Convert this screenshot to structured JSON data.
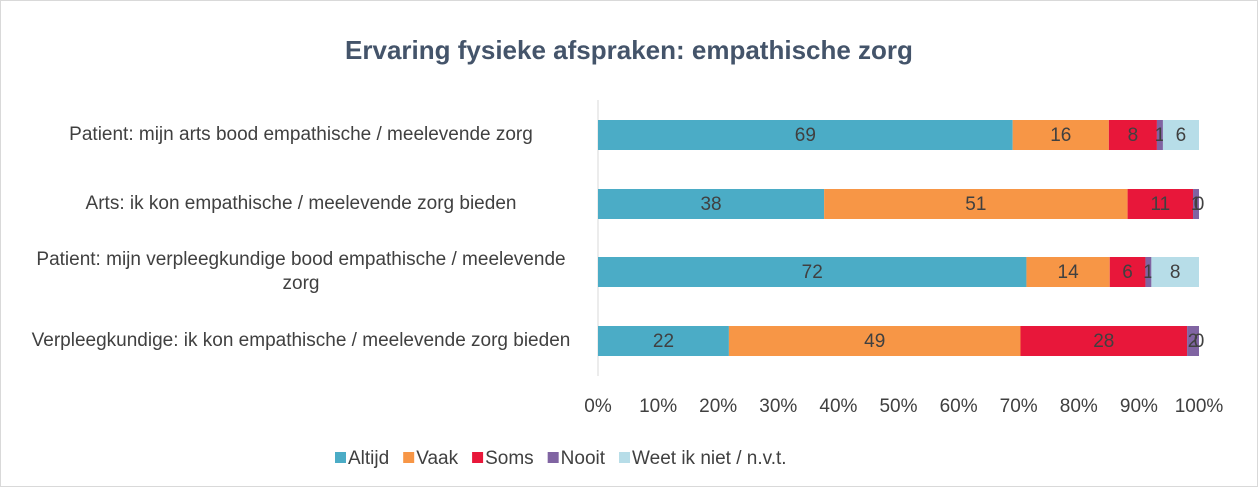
{
  "chart_data": {
    "type": "stacked_bar_horizontal_percent",
    "title": "Ervaring fysieke afspraken: empathische zorg",
    "categories": [
      "Patient: mijn arts bood empathische / meelevende zorg",
      "Arts: ik kon empathische / meelevende zorg bieden",
      "Patient: mijn verpleegkundige bood empathische / meelevende zorg",
      "Verpleegkundige: ik kon empathische / meelevende zorg bieden"
    ],
    "series": [
      {
        "name": "Altijd",
        "color": "#4bacc6",
        "values": [
          69,
          38,
          72,
          22
        ]
      },
      {
        "name": "Vaak",
        "color": "#f79646",
        "values": [
          16,
          51,
          14,
          49
        ]
      },
      {
        "name": "Soms",
        "color": "#e8173a",
        "values": [
          8,
          11,
          6,
          28
        ]
      },
      {
        "name": "Nooit",
        "color": "#8064a2",
        "values": [
          1,
          1,
          1,
          2
        ]
      },
      {
        "name": "Weet ik niet / n.v.t.",
        "color": "#b7dde8",
        "values": [
          6,
          0,
          8,
          0
        ]
      }
    ],
    "xlim": [
      0,
      100
    ],
    "xticks": [
      {
        "value": 0,
        "label": "0%"
      },
      {
        "value": 10,
        "label": "10%"
      },
      {
        "value": 20,
        "label": "20%"
      },
      {
        "value": 30,
        "label": "30%"
      },
      {
        "value": 40,
        "label": "40%"
      },
      {
        "value": 50,
        "label": "50%"
      },
      {
        "value": 60,
        "label": "60%"
      },
      {
        "value": 70,
        "label": "70%"
      },
      {
        "value": 80,
        "label": "80%"
      },
      {
        "value": 90,
        "label": "90%"
      },
      {
        "value": 100,
        "label": "100%"
      }
    ],
    "legend": "bottom"
  }
}
